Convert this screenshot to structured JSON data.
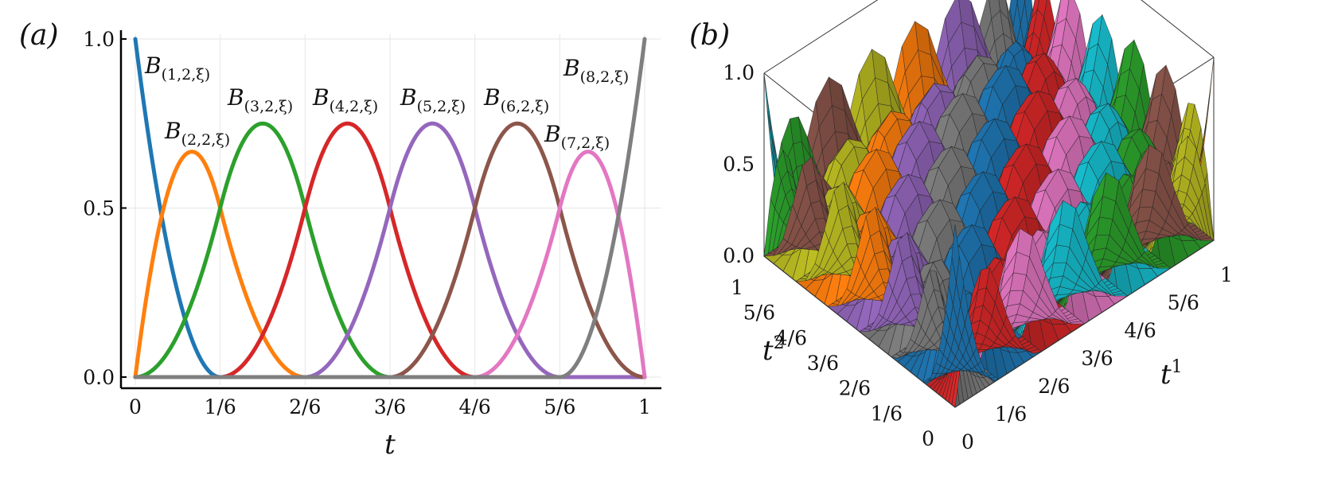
{
  "figure": {
    "panel_a_label": "(a)",
    "panel_b_label": "(b)"
  },
  "chart_data": [
    {
      "type": "line",
      "title": "",
      "xlabel": "t",
      "ylabel": "",
      "xlim": [
        0,
        1
      ],
      "ylim": [
        0,
        1
      ],
      "x_ticks": [
        0,
        0.16667,
        0.33333,
        0.5,
        0.66667,
        0.83333,
        1
      ],
      "x_tick_labels": [
        "0",
        "1/6",
        "2/6",
        "3/6",
        "4/6",
        "5/6",
        "1"
      ],
      "y_ticks": [
        0,
        0.5,
        1
      ],
      "y_tick_labels": [
        "0.0",
        "0.5",
        "1.0"
      ],
      "grid": true,
      "knots": [
        0,
        0,
        0,
        0.16667,
        0.33333,
        0.5,
        0.66667,
        0.83333,
        1,
        1,
        1
      ],
      "degree": 2,
      "series": [
        {
          "name": "B_(1,2,ξ)",
          "label_main": "B",
          "label_sub": "(1,2,ξ)",
          "color": "#1f77b4"
        },
        {
          "name": "B_(2,2,ξ)",
          "label_main": "B",
          "label_sub": "(2,2,ξ)",
          "color": "#ff7f0e"
        },
        {
          "name": "B_(3,2,ξ)",
          "label_main": "B",
          "label_sub": "(3,2,ξ)",
          "color": "#2ca02c"
        },
        {
          "name": "B_(4,2,ξ)",
          "label_main": "B",
          "label_sub": "(4,2,ξ)",
          "color": "#d62728"
        },
        {
          "name": "B_(5,2,ξ)",
          "label_main": "B",
          "label_sub": "(5,2,ξ)",
          "color": "#9467bd"
        },
        {
          "name": "B_(6,2,ξ)",
          "label_main": "B",
          "label_sub": "(6,2,ξ)",
          "color": "#8c564b"
        },
        {
          "name": "B_(7,2,ξ)",
          "label_main": "B",
          "label_sub": "(7,2,ξ)",
          "color": "#e377c2"
        },
        {
          "name": "B_(8,2,ξ)",
          "label_main": "B",
          "label_sub": "(8,2,ξ)",
          "color": "#7f7f7f"
        }
      ]
    },
    {
      "type": "surface",
      "title": "",
      "xlabel": "t",
      "xlabel_sup": "1",
      "ylabel": "t",
      "ylabel_sup": "2",
      "zlim": [
        0,
        1
      ],
      "z_ticks": [
        0,
        0.5,
        1
      ],
      "z_tick_labels": [
        "0.0",
        "0.5",
        "1.0"
      ],
      "x_ticks": [
        0,
        0.16667,
        0.33333,
        0.5,
        0.66667,
        0.83333,
        1
      ],
      "x_tick_labels": [
        "0",
        "1/6",
        "2/6",
        "3/6",
        "4/6",
        "5/6",
        "1"
      ],
      "y_ticks": [
        0,
        0.16667,
        0.33333,
        0.5,
        0.66667,
        0.83333,
        1
      ],
      "y_tick_labels": [
        "0",
        "1/6",
        "2/6",
        "3/6",
        "4/6",
        "5/6",
        "1"
      ],
      "description_values": "tensor-product quadratic B-spline basis functions B_i(t1)·B_j(t2), i,j = 1..8",
      "palette": [
        "#1f77b4",
        "#ff7f0e",
        "#2ca02c",
        "#d62728",
        "#9467bd",
        "#8c564b",
        "#e377c2",
        "#7f7f7f",
        "#bcbd22",
        "#17becf"
      ]
    }
  ]
}
